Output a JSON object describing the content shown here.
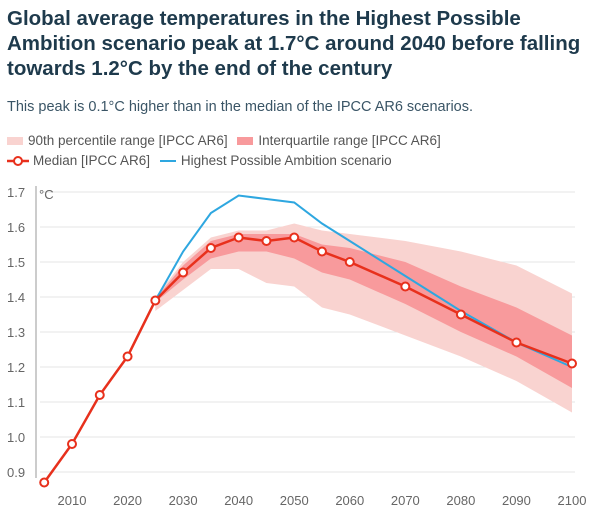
{
  "title": "Global average temperatures in the Highest Possible Ambition scenario peak at 1.7°C around 2040 before falling towards 1.2°C by the end of the century",
  "subtitle": "This peak is 0.1°C higher than in the median of the IPCC AR6 scenarios.",
  "colors": {
    "p90": "#f9d3d0",
    "iqr": "#f89a9c",
    "median": "#e8301c",
    "hpa": "#2ea7e0"
  },
  "chart_data": {
    "type": "line",
    "ylabel": "°C",
    "xlim": [
      2005,
      2100
    ],
    "ylim": [
      0.85,
      1.72
    ],
    "grid": "horizontal",
    "legend_position": "top",
    "xticks": [
      2010,
      2020,
      2030,
      2040,
      2050,
      2060,
      2070,
      2080,
      2090,
      2100
    ],
    "yticks": [
      "0.9",
      "1.0",
      "1.1",
      "1.2",
      "1.3",
      "1.4",
      "1.5",
      "1.6",
      "1.7"
    ],
    "legend": [
      "90th percentile range [IPCC AR6]",
      "Interquartile range [IPCC AR6]",
      "Median [IPCC AR6]",
      "Highest Possible Ambition scenario"
    ],
    "median": {
      "name": "Median [IPCC AR6]",
      "x": [
        2005,
        2010,
        2015,
        2020,
        2025,
        2030,
        2035,
        2040,
        2045,
        2050,
        2055,
        2060,
        2070,
        2080,
        2090,
        2100
      ],
      "y": [
        0.87,
        0.98,
        1.12,
        1.23,
        1.39,
        1.47,
        1.54,
        1.57,
        1.56,
        1.57,
        1.53,
        1.5,
        1.43,
        1.35,
        1.27,
        1.21
      ]
    },
    "hpa": {
      "name": "Highest Possible Ambition scenario",
      "x": [
        2005,
        2010,
        2015,
        2020,
        2025,
        2030,
        2035,
        2040,
        2045,
        2050,
        2055,
        2060,
        2070,
        2080,
        2090,
        2100
      ],
      "y": [
        0.87,
        0.98,
        1.12,
        1.23,
        1.39,
        1.53,
        1.64,
        1.69,
        1.68,
        1.67,
        1.61,
        1.56,
        1.46,
        1.36,
        1.27,
        1.2
      ]
    },
    "p90_range": {
      "name": "90th percentile range [IPCC AR6]",
      "x": [
        2025,
        2030,
        2035,
        2040,
        2045,
        2050,
        2055,
        2060,
        2070,
        2080,
        2090,
        2100
      ],
      "low": [
        1.36,
        1.42,
        1.48,
        1.48,
        1.44,
        1.43,
        1.37,
        1.35,
        1.29,
        1.23,
        1.16,
        1.07
      ],
      "high": [
        1.4,
        1.5,
        1.57,
        1.59,
        1.59,
        1.61,
        1.59,
        1.58,
        1.56,
        1.53,
        1.49,
        1.41
      ]
    },
    "iqr_range": {
      "name": "Interquartile range [IPCC AR6]",
      "x": [
        2025,
        2030,
        2035,
        2040,
        2045,
        2050,
        2055,
        2060,
        2070,
        2080,
        2090,
        2100
      ],
      "low": [
        1.385,
        1.45,
        1.51,
        1.53,
        1.53,
        1.51,
        1.47,
        1.45,
        1.38,
        1.3,
        1.23,
        1.14
      ],
      "high": [
        1.395,
        1.49,
        1.56,
        1.58,
        1.58,
        1.58,
        1.55,
        1.54,
        1.5,
        1.43,
        1.37,
        1.29
      ]
    }
  }
}
